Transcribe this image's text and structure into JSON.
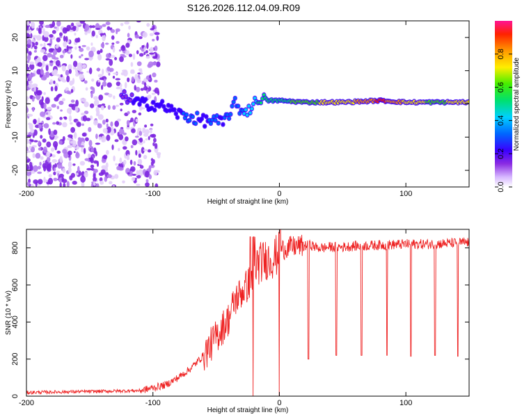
{
  "title": "S126.2026.112.04.09.R09",
  "chart_data": [
    {
      "type": "heatmap",
      "xlabel": "Height of straight line (km)",
      "ylabel": "Frequency (Hz)",
      "xlim": [
        -200,
        150
      ],
      "ylim": [
        -25,
        25
      ],
      "xticks": [
        -200,
        -100,
        0,
        100
      ],
      "yticks": [
        -20,
        -10,
        0,
        10,
        20
      ],
      "colorbar": {
        "label": "Normalized spectral amplitude",
        "range": [
          0,
          1
        ],
        "ticks": [
          0.0,
          0.2,
          0.4,
          0.6,
          0.8
        ]
      },
      "ridge": {
        "x": [
          -120,
          -110,
          -100,
          -90,
          -80,
          -70,
          -60,
          -50,
          -45,
          -40,
          -35,
          -30,
          -25,
          -20,
          -15,
          -10,
          -5,
          0,
          20,
          50,
          80,
          100,
          120,
          150
        ],
        "freq": [
          2,
          0,
          0,
          -1,
          -3,
          -4,
          -5,
          -5,
          -6,
          -3,
          0,
          -2,
          -2,
          0,
          2,
          1,
          1,
          1,
          0.5,
          0.5,
          1,
          0.5,
          0.5,
          0.5
        ],
        "amplitude": [
          0.2,
          0.25,
          0.3,
          0.3,
          0.3,
          0.35,
          0.3,
          0.35,
          0.3,
          0.4,
          0.35,
          0.4,
          0.45,
          0.5,
          0.55,
          0.55,
          0.6,
          0.55,
          0.7,
          0.75,
          0.95,
          0.8,
          0.7,
          0.75
        ]
      }
    },
    {
      "type": "line",
      "xlabel": "Height of straight line (km)",
      "ylabel": "SNR (10 * v/v)",
      "xlim": [
        -200,
        150
      ],
      "ylim": [
        0,
        900
      ],
      "xticks": [
        -200,
        -100,
        0,
        100
      ],
      "yticks": [
        0,
        200,
        400,
        600,
        800
      ],
      "series": [
        {
          "name": "SNR",
          "color": "#ee2222",
          "x": [
            -200,
            -150,
            -110,
            -90,
            -80,
            -70,
            -60,
            -50,
            -40,
            -35,
            -30,
            -25,
            -22,
            -20,
            -15,
            -10,
            -5,
            -2,
            0,
            2,
            5,
            10,
            15,
            20,
            25,
            30,
            35,
            40,
            50,
            60,
            80,
            100,
            120,
            150
          ],
          "y": [
            20,
            25,
            30,
            60,
            100,
            150,
            220,
            320,
            420,
            520,
            560,
            600,
            640,
            700,
            720,
            740,
            745,
            760,
            780,
            790,
            800,
            805,
            810,
            812,
            815,
            800,
            800,
            805,
            805,
            810,
            815,
            820,
            820,
            830
          ]
        }
      ],
      "dropouts": [
        {
          "x": -21,
          "value": 0
        },
        {
          "x": 0,
          "value": 0
        },
        {
          "x": 23,
          "value": 200
        },
        {
          "x": 45,
          "value": 220
        },
        {
          "x": 65,
          "value": 220
        },
        {
          "x": 85,
          "value": 220
        },
        {
          "x": 104,
          "value": 215
        },
        {
          "x": 123,
          "value": 220
        },
        {
          "x": 141,
          "value": 215
        }
      ]
    }
  ]
}
